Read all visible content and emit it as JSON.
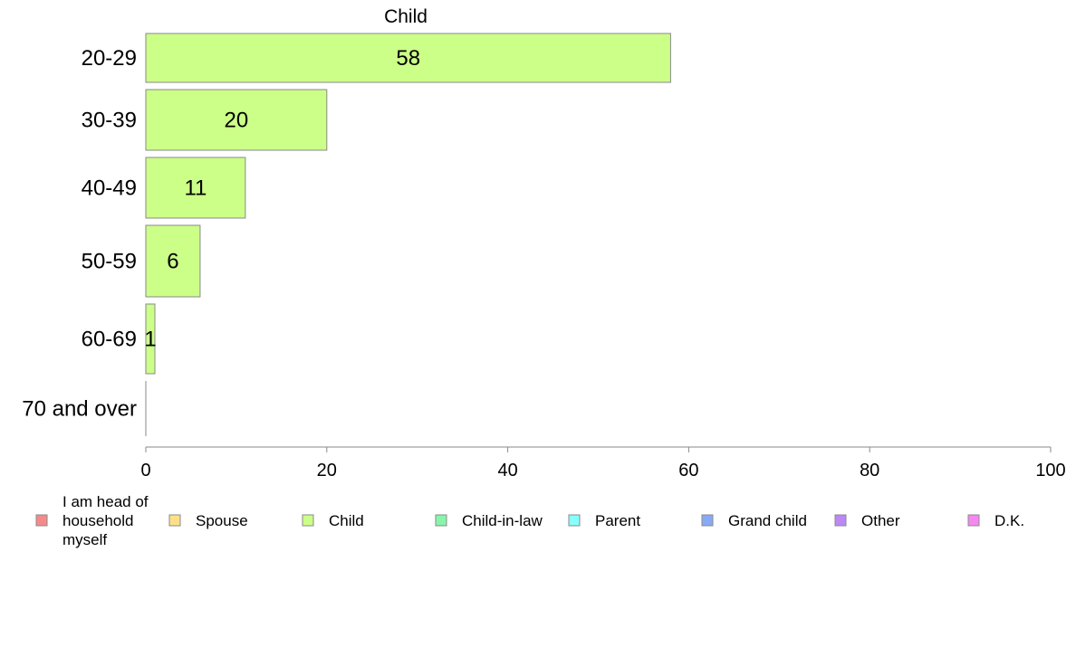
{
  "chart_data": {
    "type": "bar",
    "orientation": "horizontal",
    "title": "Child",
    "categories": [
      "20-29",
      "30-39",
      "40-49",
      "50-59",
      "60-69",
      "70 and over"
    ],
    "series": [
      {
        "name": "Child",
        "values": [
          58,
          20,
          11,
          6,
          1,
          0
        ],
        "color": "#ccff88"
      }
    ],
    "data_labels": [
      "58",
      "20",
      "11",
      "6",
      "1",
      ""
    ],
    "xlim": [
      0,
      100
    ],
    "xticks": [
      0,
      20,
      40,
      60,
      80,
      100
    ],
    "grid": false,
    "legend": {
      "placement": "bottom",
      "entries": [
        {
          "label": "I am head of household myself",
          "color": "#f58a8a"
        },
        {
          "label": "Spouse",
          "color": "#ffe08a"
        },
        {
          "label": "Child",
          "color": "#ccff88"
        },
        {
          "label": "Child-in-law",
          "color": "#88f5aa"
        },
        {
          "label": "Parent",
          "color": "#88ffff"
        },
        {
          "label": "Grand child",
          "color": "#88aaf5"
        },
        {
          "label": "Other",
          "color": "#bb88f5"
        },
        {
          "label": "D.K.",
          "color": "#f588f0"
        }
      ]
    }
  }
}
